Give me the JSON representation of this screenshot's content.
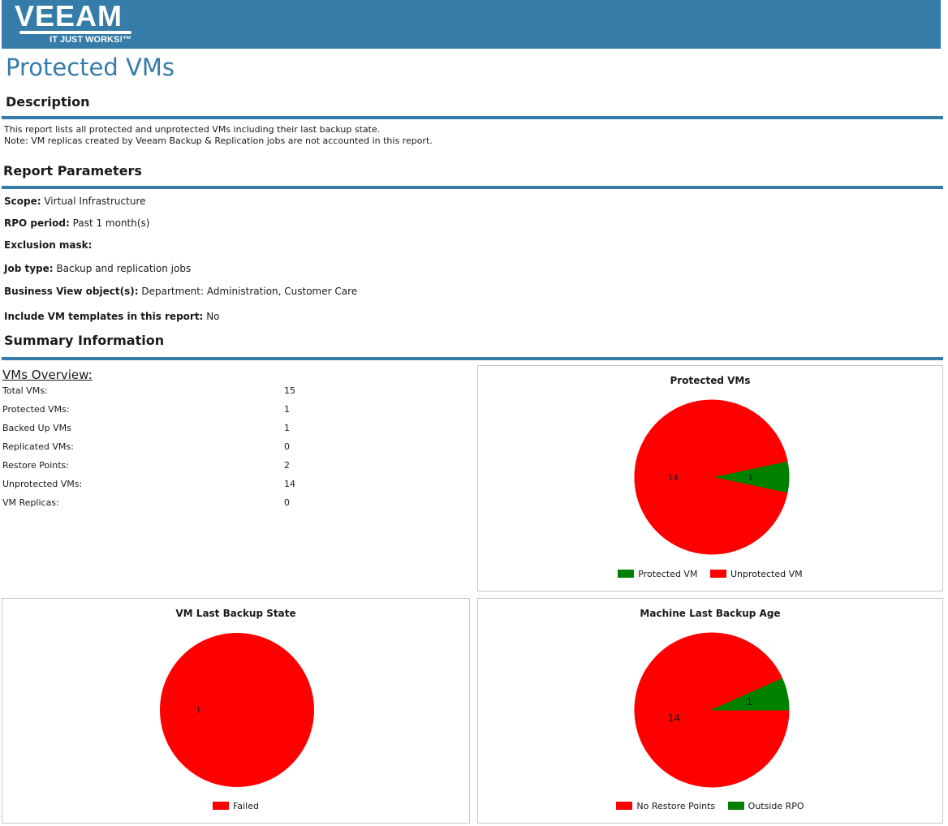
{
  "header": {
    "logo_text": "VEEAM",
    "logo_tagline": "IT JUST WORKS!™"
  },
  "page_title": "Protected VMs",
  "sections": {
    "description": "Description",
    "parameters": "Report Parameters",
    "summary": "Summary Information"
  },
  "description": {
    "line1": "This report lists all protected and unprotected VMs including their last backup state.",
    "line2": "Note: VM replicas created by Veeam Backup & Replication jobs are not accounted in this report."
  },
  "parameters": [
    {
      "label": "Scope:",
      "value": "Virtual Infrastructure"
    },
    {
      "label": "RPO period:",
      "value": "Past 1 month(s)"
    },
    {
      "label": "Exclusion mask:",
      "value": ""
    },
    {
      "label": "Job type:",
      "value": "Backup and replication jobs"
    },
    {
      "label": "Business View object(s):",
      "value": "Department: Administration, Customer Care"
    },
    {
      "label": "Include VM templates in this report:",
      "value": "No"
    }
  ],
  "overview": {
    "title": "VMs Overview:",
    "rows": [
      {
        "label": "Total VMs:",
        "value": "15"
      },
      {
        "label": "Protected VMs:",
        "value": "1"
      },
      {
        "label": "Backed Up VMs",
        "value": "1"
      },
      {
        "label": "Replicated VMs:",
        "value": "0"
      },
      {
        "label": "Restore Points:",
        "value": "2"
      },
      {
        "label": "Unprotected VMs:",
        "value": "14"
      },
      {
        "label": "VM Replicas:",
        "value": "0"
      }
    ]
  },
  "colors": {
    "accent": "#357ca9",
    "green": "#008000",
    "red": "#ff0000"
  },
  "chart_data": [
    {
      "type": "pie",
      "title": "Protected VMs",
      "series": [
        {
          "name": "Protected VM",
          "value": 1,
          "color": "#008000"
        },
        {
          "name": "Unprotected VM",
          "value": 14,
          "color": "#ff0000"
        }
      ],
      "legend": "bottom"
    },
    {
      "type": "pie",
      "title": "VM Last Backup State",
      "series": [
        {
          "name": "Failed",
          "value": 1,
          "color": "#ff0000"
        }
      ],
      "legend": "bottom"
    },
    {
      "type": "pie",
      "title": "Machine Last Backup Age",
      "series": [
        {
          "name": "No Restore Points",
          "value": 14,
          "color": "#ff0000"
        },
        {
          "name": "Outside RPO",
          "value": 1,
          "color": "#008000"
        }
      ],
      "legend": "bottom"
    }
  ]
}
